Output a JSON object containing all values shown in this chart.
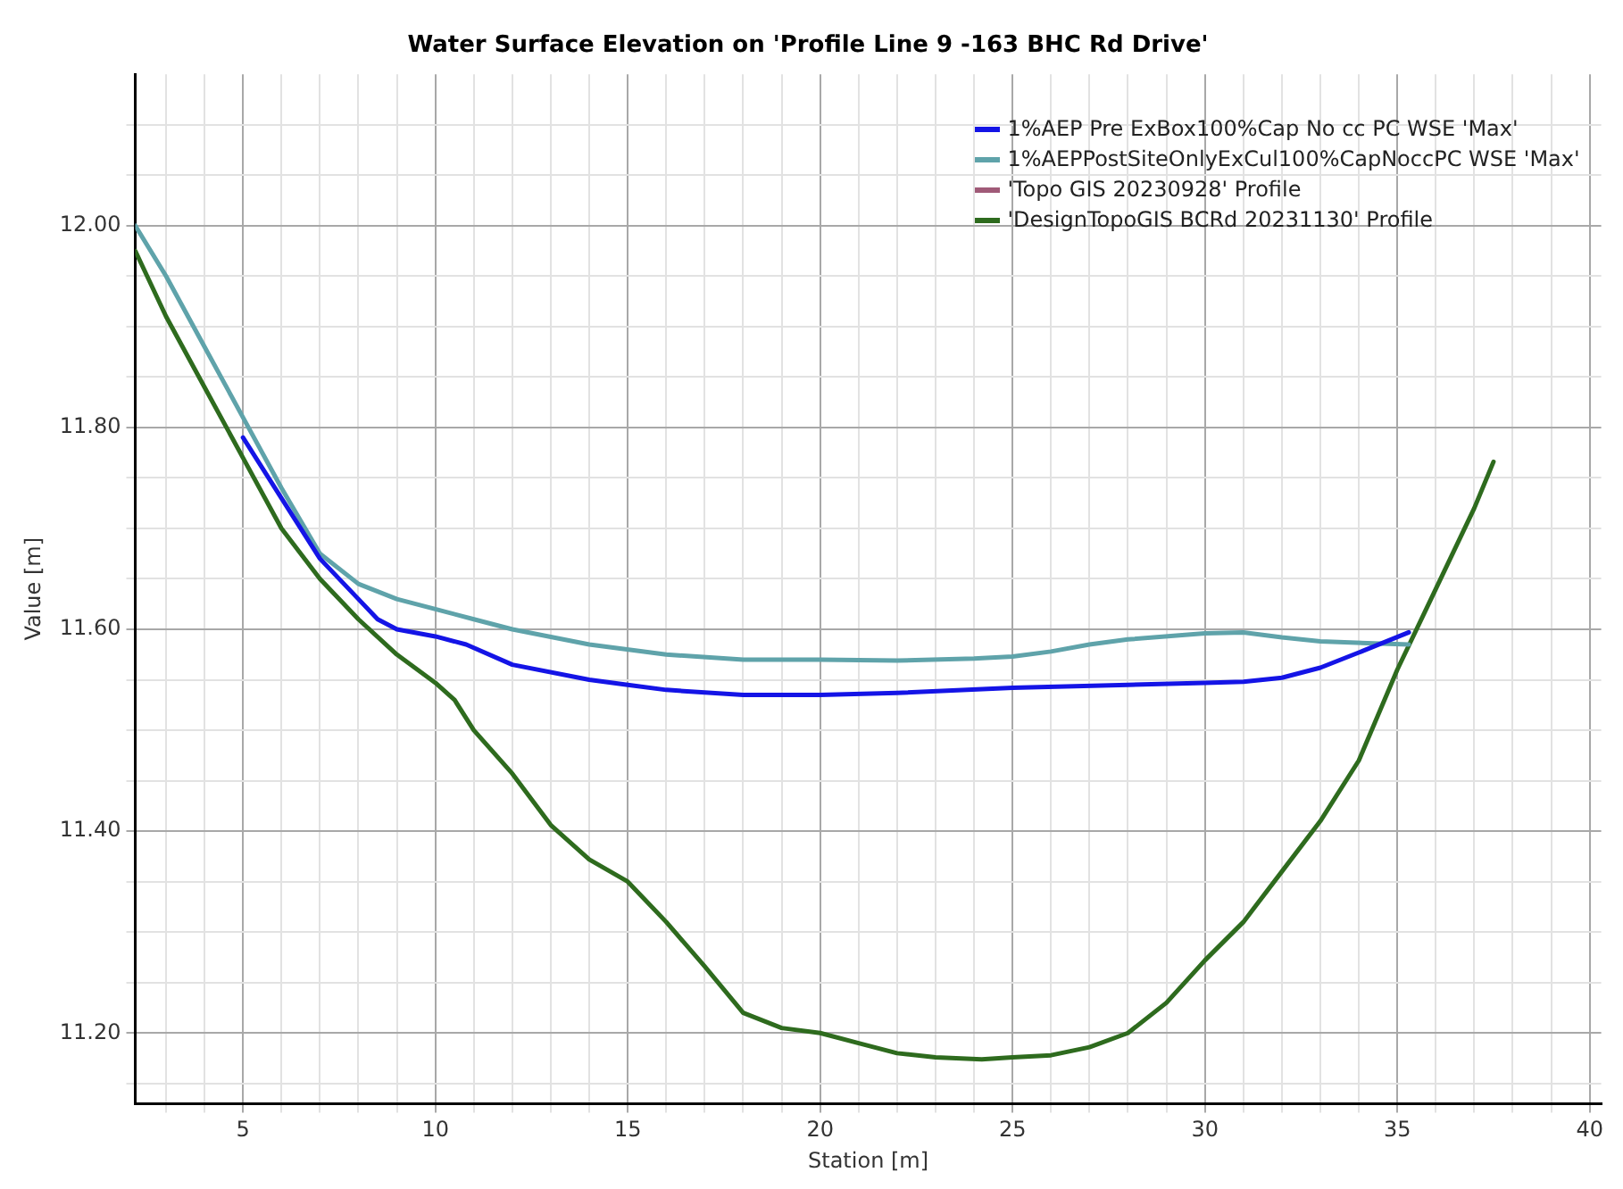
{
  "chart_data": {
    "type": "line",
    "title": "Water Surface Elevation on 'Profile Line 9 -163 BHC Rd Drive'",
    "xlabel": "Station [m]",
    "ylabel": "Value [m]",
    "xlim": [
      2.2,
      40.3
    ],
    "ylim": [
      11.13,
      12.15
    ],
    "xticks": [
      {
        "value": 3,
        "label": null
      },
      {
        "value": 4,
        "label": null
      },
      5,
      {
        "value": 6,
        "label": null
      },
      {
        "value": 7,
        "label": null
      },
      {
        "value": 8,
        "label": null
      },
      {
        "value": 9,
        "label": null
      },
      10,
      {
        "value": 11,
        "label": null
      },
      {
        "value": 12,
        "label": null
      },
      {
        "value": 13,
        "label": null
      },
      {
        "value": 14,
        "label": null
      },
      15,
      {
        "value": 16,
        "label": null
      },
      {
        "value": 17,
        "label": null
      },
      {
        "value": 18,
        "label": null
      },
      {
        "value": 19,
        "label": null
      },
      20,
      {
        "value": 21,
        "label": null
      },
      {
        "value": 22,
        "label": null
      },
      {
        "value": 23,
        "label": null
      },
      {
        "value": 24,
        "label": null
      },
      25,
      {
        "value": 26,
        "label": null
      },
      {
        "value": 27,
        "label": null
      },
      {
        "value": 28,
        "label": null
      },
      {
        "value": 29,
        "label": null
      },
      30,
      {
        "value": 31,
        "label": null
      },
      {
        "value": 32,
        "label": null
      },
      {
        "value": 33,
        "label": null
      },
      {
        "value": 34,
        "label": null
      },
      35,
      {
        "value": 36,
        "label": null
      },
      {
        "value": 37,
        "label": null
      },
      {
        "value": 38,
        "label": null
      },
      {
        "value": 39,
        "label": null
      },
      40
    ],
    "yticks": [
      {
        "value": 11.15,
        "label": null
      },
      {
        "value": 11.2,
        "label": "11.20"
      },
      {
        "value": 11.25,
        "label": null
      },
      {
        "value": 11.3,
        "label": null
      },
      {
        "value": 11.35,
        "label": null
      },
      {
        "value": 11.4,
        "label": "11.40"
      },
      {
        "value": 11.45,
        "label": null
      },
      {
        "value": 11.5,
        "label": null
      },
      {
        "value": 11.55,
        "label": null
      },
      {
        "value": 11.6,
        "label": "11.60"
      },
      {
        "value": 11.65,
        "label": null
      },
      {
        "value": 11.7,
        "label": null
      },
      {
        "value": 11.75,
        "label": null
      },
      {
        "value": 11.8,
        "label": "11.80"
      },
      {
        "value": 11.85,
        "label": null
      },
      {
        "value": 11.9,
        "label": null
      },
      {
        "value": 11.95,
        "label": null
      },
      {
        "value": 12.0,
        "label": "12.00"
      },
      {
        "value": 12.05,
        "label": null
      },
      {
        "value": 12.1,
        "label": null
      }
    ],
    "grid": true,
    "legend": "top right",
    "marker": "none",
    "line_style": "solid",
    "series": [
      {
        "name": "1%AEP Pre ExBox100%Cap No cc PC WSE 'Max'",
        "color": "#1414e6",
        "x": [
          5,
          6,
          7,
          8,
          8.5,
          9,
          10,
          10.8,
          12,
          14,
          15,
          16,
          18,
          20,
          22,
          25,
          28,
          30,
          31,
          32,
          33,
          34,
          35.3
        ],
        "values": [
          11.79,
          11.73,
          11.67,
          11.63,
          11.61,
          11.6,
          11.593,
          11.585,
          11.565,
          11.55,
          11.545,
          11.54,
          11.535,
          11.535,
          11.537,
          11.542,
          11.545,
          11.547,
          11.548,
          11.552,
          11.562,
          11.577,
          11.597
        ]
      },
      {
        "name": "1%AEPPostSiteOnlyExCul100%CapNoccPC WSE 'Max'",
        "color": "#5fa3aa",
        "x": [
          2.2,
          3,
          4,
          5,
          6,
          7,
          8,
          9,
          10,
          11,
          12,
          14,
          16,
          18,
          20,
          22,
          24,
          25,
          26,
          27,
          28,
          30,
          31,
          32,
          33,
          35.3
        ],
        "values": [
          12.0,
          11.95,
          11.88,
          11.81,
          11.74,
          11.675,
          11.645,
          11.63,
          11.62,
          11.61,
          11.6,
          11.585,
          11.575,
          11.57,
          11.57,
          11.569,
          11.571,
          11.573,
          11.578,
          11.585,
          11.59,
          11.596,
          11.597,
          11.592,
          11.588,
          11.585
        ]
      },
      {
        "name": "'Topo GIS 20230928' Profile",
        "color": "#a05a78"
      },
      {
        "name": "'DesignTopoGIS BCRd 20231130' Profile",
        "color": "#2e6b1e",
        "x": [
          2.2,
          3,
          4,
          5,
          6,
          7,
          8,
          9,
          10,
          10.5,
          11,
          12,
          13,
          14,
          15,
          16,
          17,
          18,
          19,
          20,
          21,
          22,
          23,
          24.2,
          25,
          26,
          27,
          28,
          29,
          30,
          31,
          32,
          33,
          34,
          35,
          36,
          37,
          37.5
        ],
        "values": [
          11.975,
          11.91,
          11.84,
          11.77,
          11.7,
          11.65,
          11.61,
          11.575,
          11.547,
          11.53,
          11.5,
          11.457,
          11.406,
          11.372,
          11.35,
          11.31,
          11.266,
          11.22,
          11.205,
          11.2,
          11.19,
          11.18,
          11.176,
          11.174,
          11.176,
          11.178,
          11.186,
          11.2,
          11.23,
          11.272,
          11.31,
          11.36,
          11.41,
          11.47,
          11.56,
          11.64,
          11.72,
          11.766
        ]
      }
    ]
  }
}
